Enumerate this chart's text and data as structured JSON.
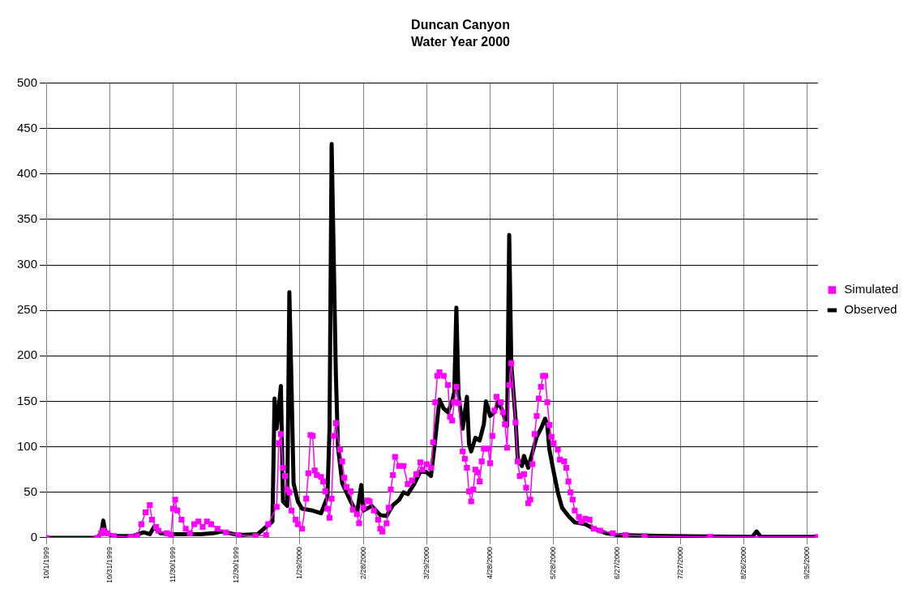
{
  "chart_data": {
    "type": "line",
    "title": "Duncan Canyon",
    "subtitle": "Water Year 2000",
    "xlim": [
      "1999-10-01",
      "2000-09-30"
    ],
    "xticks": [
      {
        "value": "1999-10-01",
        "label": "10/1/1999"
      },
      {
        "value": "1999-10-31",
        "label": "10/31/1999"
      },
      {
        "value": "1999-11-30",
        "label": "11/30/1999"
      },
      {
        "value": "1999-12-30",
        "label": "12/30/1999"
      },
      {
        "value": "2000-01-29",
        "label": "1/29/2000"
      },
      {
        "value": "2000-02-28",
        "label": "2/28/2000"
      },
      {
        "value": "2000-03-29",
        "label": "3/29/2000"
      },
      {
        "value": "2000-04-28",
        "label": "4/28/2000"
      },
      {
        "value": "2000-05-28",
        "label": "5/28/2000"
      },
      {
        "value": "2000-06-27",
        "label": "6/27/2000"
      },
      {
        "value": "2000-07-27",
        "label": "7/27/2000"
      },
      {
        "value": "2000-08-26",
        "label": "8/26/2000"
      },
      {
        "value": "2000-09-25",
        "label": "9/25/2000"
      }
    ],
    "ylim": [
      0,
      500
    ],
    "yticks": [
      0,
      50,
      100,
      150,
      200,
      250,
      300,
      350,
      400,
      450,
      500
    ],
    "grid": true,
    "legend": "right",
    "series": [
      {
        "name": "Observed",
        "color": "#000000",
        "marker": "none",
        "x": [
          "1999-10-01",
          "1999-10-25",
          "1999-10-27",
          "1999-10-28",
          "1999-10-29",
          "1999-11-02",
          "1999-11-11",
          "1999-11-16",
          "1999-11-19",
          "1999-11-21",
          "1999-11-24",
          "1999-12-01",
          "1999-12-13",
          "1999-12-19",
          "1999-12-23",
          "1999-12-31",
          "2000-01-09",
          "2000-01-13",
          "2000-01-16",
          "2000-01-17",
          "2000-01-18",
          "2000-01-20",
          "2000-01-21",
          "2000-01-23",
          "2000-01-24",
          "2000-01-25",
          "2000-01-26",
          "2000-01-28",
          "2000-01-30",
          "2000-02-04",
          "2000-02-08",
          "2000-02-11",
          "2000-02-12",
          "2000-02-13",
          "2000-02-15",
          "2000-02-16",
          "2000-02-18",
          "2000-02-22",
          "2000-02-25",
          "2000-02-27",
          "2000-02-28",
          "2000-03-03",
          "2000-03-07",
          "2000-03-10",
          "2000-03-13",
          "2000-03-16",
          "2000-03-18",
          "2000-03-20",
          "2000-03-23",
          "2000-03-26",
          "2000-03-29",
          "2000-03-31",
          "2000-04-02",
          "2000-04-04",
          "2000-04-06",
          "2000-04-08",
          "2000-04-10",
          "2000-04-11",
          "2000-04-12",
          "2000-04-13",
          "2000-04-15",
          "2000-04-17",
          "2000-04-18",
          "2000-04-19",
          "2000-04-21",
          "2000-04-23",
          "2000-04-25",
          "2000-04-26",
          "2000-04-28",
          "2000-04-30",
          "2000-05-02",
          "2000-05-04",
          "2000-05-06",
          "2000-05-07",
          "2000-05-08",
          "2000-05-10",
          "2000-05-11",
          "2000-05-13",
          "2000-05-14",
          "2000-05-16",
          "2000-05-18",
          "2000-05-20",
          "2000-05-22",
          "2000-05-24",
          "2000-05-25",
          "2000-05-26",
          "2000-05-28",
          "2000-05-30",
          "2000-06-01",
          "2000-06-04",
          "2000-06-07",
          "2000-06-12",
          "2000-06-16",
          "2000-06-22",
          "2000-06-27",
          "2000-07-21",
          "2000-08-30",
          "2000-09-01",
          "2000-09-03",
          "2000-09-30"
        ],
        "values": [
          0,
          0,
          5,
          19,
          5,
          2,
          2,
          6,
          4,
          12,
          5,
          4,
          4,
          5,
          7,
          3,
          4,
          12,
          18,
          153,
          120,
          167,
          40,
          35,
          270,
          170,
          60,
          40,
          32,
          30,
          27,
          45,
          120,
          433,
          180,
          100,
          60,
          40,
          27,
          58,
          30,
          35,
          25,
          24,
          36,
          42,
          50,
          48,
          59,
          73,
          72,
          68,
          108,
          152,
          142,
          138,
          150,
          160,
          253,
          158,
          120,
          155,
          103,
          95,
          110,
          107,
          125,
          150,
          134,
          138,
          150,
          138,
          123,
          333,
          190,
          131,
          88,
          79,
          90,
          77,
          94,
          111,
          120,
          131,
          124,
          97,
          73,
          50,
          33,
          24,
          17,
          15,
          10,
          5,
          3,
          2,
          1,
          7,
          1,
          1
        ]
      },
      {
        "name": "Simulated",
        "color": "#ff00ff",
        "marker": "square",
        "x": [
          "1999-10-01",
          "1999-10-25",
          "1999-10-27",
          "1999-10-28",
          "1999-10-30",
          "1999-11-02",
          "1999-11-10",
          "1999-11-13",
          "1999-11-15",
          "1999-11-17",
          "1999-11-19",
          "1999-11-20",
          "1999-11-22",
          "1999-11-23",
          "1999-11-27",
          "1999-11-29",
          "1999-11-30",
          "1999-12-01",
          "1999-12-02",
          "1999-12-04",
          "1999-12-06",
          "1999-12-08",
          "1999-12-10",
          "1999-12-12",
          "1999-12-14",
          "1999-12-16",
          "1999-12-18",
          "1999-12-21",
          "1999-12-25",
          "1999-12-31",
          "2000-01-08",
          "2000-01-13",
          "2000-01-14",
          "2000-01-18",
          "2000-01-19",
          "2000-01-20",
          "2000-01-21",
          "2000-01-22",
          "2000-01-23",
          "2000-01-24",
          "2000-01-25",
          "2000-01-27",
          "2000-01-28",
          "2000-01-30",
          "2000-02-01",
          "2000-02-02",
          "2000-02-03",
          "2000-02-04",
          "2000-02-05",
          "2000-02-06",
          "2000-02-08",
          "2000-02-09",
          "2000-02-10",
          "2000-02-11",
          "2000-02-12",
          "2000-02-13",
          "2000-02-14",
          "2000-02-15",
          "2000-02-17",
          "2000-02-18",
          "2000-02-19",
          "2000-02-20",
          "2000-02-22",
          "2000-02-23",
          "2000-02-25",
          "2000-02-26",
          "2000-02-28",
          "2000-03-01",
          "2000-03-02",
          "2000-03-04",
          "2000-03-06",
          "2000-03-07",
          "2000-03-08",
          "2000-03-10",
          "2000-03-11",
          "2000-03-12",
          "2000-03-13",
          "2000-03-14",
          "2000-03-16",
          "2000-03-18",
          "2000-03-20",
          "2000-03-22",
          "2000-03-24",
          "2000-03-26",
          "2000-03-27",
          "2000-03-29",
          "2000-03-31",
          "2000-04-01",
          "2000-04-02",
          "2000-04-03",
          "2000-04-04",
          "2000-04-06",
          "2000-04-08",
          "2000-04-09",
          "2000-04-10",
          "2000-04-11",
          "2000-04-12",
          "2000-04-13",
          "2000-04-15",
          "2000-04-16",
          "2000-04-17",
          "2000-04-18",
          "2000-04-19",
          "2000-04-20",
          "2000-04-21",
          "2000-04-22",
          "2000-04-23",
          "2000-04-24",
          "2000-04-25",
          "2000-04-27",
          "2000-04-28",
          "2000-04-29",
          "2000-04-30",
          "2000-05-01",
          "2000-05-03",
          "2000-05-04",
          "2000-05-05",
          "2000-05-06",
          "2000-05-07",
          "2000-05-08",
          "2000-05-10",
          "2000-05-11",
          "2000-05-12",
          "2000-05-14",
          "2000-05-15",
          "2000-05-16",
          "2000-05-17",
          "2000-05-18",
          "2000-05-19",
          "2000-05-20",
          "2000-05-21",
          "2000-05-22",
          "2000-05-23",
          "2000-05-24",
          "2000-05-25",
          "2000-05-26",
          "2000-05-27",
          "2000-05-28",
          "2000-05-30",
          "2000-05-31",
          "2000-06-02",
          "2000-06-03",
          "2000-06-04",
          "2000-06-05",
          "2000-06-06",
          "2000-06-07",
          "2000-06-09",
          "2000-06-10",
          "2000-06-12",
          "2000-06-14",
          "2000-06-16",
          "2000-06-19",
          "2000-06-25",
          "2000-07-01",
          "2000-07-10",
          "2000-08-10",
          "2000-09-30"
        ],
        "values": [
          0,
          0,
          5,
          8,
          5,
          2,
          1,
          2,
          15,
          28,
          36,
          20,
          12,
          8,
          5,
          3,
          32,
          42,
          30,
          20,
          10,
          5,
          15,
          18,
          12,
          18,
          15,
          10,
          6,
          3,
          2,
          3,
          15,
          34,
          104,
          114,
          77,
          68,
          53,
          50,
          30,
          20,
          15,
          10,
          43,
          71,
          113,
          112,
          74,
          69,
          67,
          62,
          51,
          32,
          22,
          43,
          112,
          126,
          97,
          84,
          66,
          56,
          51,
          31,
          26,
          16,
          33,
          41,
          40,
          30,
          20,
          10,
          7,
          16,
          33,
          53,
          69,
          89,
          79,
          79,
          59,
          63,
          70,
          83,
          75,
          81,
          77,
          105,
          149,
          178,
          182,
          178,
          168,
          133,
          129,
          149,
          166,
          148,
          95,
          87,
          77,
          51,
          40,
          53,
          75,
          72,
          62,
          84,
          98,
          98,
          82,
          112,
          140,
          155,
          149,
          138,
          125,
          99,
          168,
          192,
          127,
          84,
          68,
          70,
          55,
          38,
          42,
          81,
          114,
          134,
          153,
          166,
          178,
          178,
          149,
          124,
          111,
          104,
          97,
          86,
          84,
          77,
          62,
          50,
          42,
          30,
          23,
          18,
          21,
          20,
          10,
          8,
          5,
          3,
          2,
          1,
          1
        ]
      }
    ]
  }
}
